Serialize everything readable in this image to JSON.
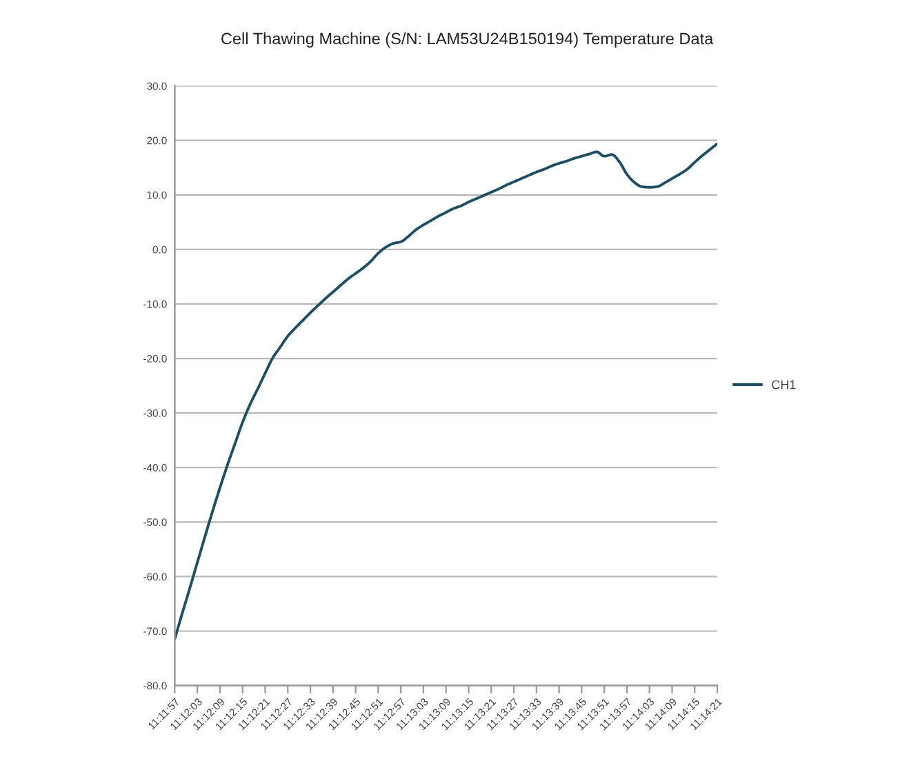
{
  "chart_data": {
    "type": "line",
    "title": "Cell Thawing Machine (S/N: LAM53U24B150194) Temperature Data",
    "categories": [
      "11:11:57",
      null,
      null,
      "11:12:03",
      null,
      null,
      "11:12:09",
      null,
      null,
      "11:12:15",
      null,
      null,
      "11:12:21",
      null,
      null,
      "11:12:27",
      null,
      null,
      "11:12:33",
      null,
      null,
      "11:12:39",
      null,
      null,
      "11:12:45",
      null,
      null,
      "11:12:51",
      null,
      null,
      "11:12:57",
      null,
      null,
      "11:13:03",
      null,
      null,
      "11:13:09",
      null,
      null,
      "11:13:15",
      null,
      null,
      "11:13:21",
      null,
      null,
      "11:13:27",
      null,
      null,
      "11:13:33",
      null,
      null,
      "11:13:39",
      null,
      null,
      "11:13:45",
      null,
      null,
      "11:13:51",
      null,
      null,
      "11:13:57",
      null,
      null,
      "11:14:03",
      null,
      null,
      "11:14:09",
      null,
      null,
      "11:14:15",
      null,
      null,
      "11:14:21"
    ],
    "series": [
      {
        "name": "CH1",
        "color": "#1d4e64",
        "values": [
          -71.4,
          -66.7,
          -62.1,
          -57.4,
          -52.7,
          -48.1,
          -43.7,
          -39.5,
          -35.6,
          -31.7,
          -28.4,
          -25.6,
          -22.7,
          -19.9,
          -17.9,
          -15.9,
          -14.4,
          -13.0,
          -11.6,
          -10.3,
          -9.0,
          -7.8,
          -6.6,
          -5.4,
          -4.4,
          -3.4,
          -2.2,
          -0.7,
          0.4,
          1.1,
          1.4,
          2.4,
          3.6,
          4.5,
          5.3,
          6.1,
          6.8,
          7.5,
          8.0,
          8.7,
          9.3,
          9.9,
          10.5,
          11.1,
          11.8,
          12.4,
          13.0,
          13.6,
          14.2,
          14.7,
          15.3,
          15.8,
          16.2,
          16.7,
          17.1,
          17.5,
          17.9,
          17.1,
          17.4,
          16.1,
          13.8,
          12.3,
          11.5,
          11.4,
          11.5,
          12.2,
          13.0,
          13.8,
          14.7,
          16.0,
          17.2,
          18.3,
          19.4
        ]
      }
    ],
    "ylim": [
      -80,
      30
    ],
    "yticks": [
      {
        "value": -80,
        "label": "-80.0"
      },
      {
        "value": -70,
        "label": "-70.0"
      },
      {
        "value": -60,
        "label": "-60.0"
      },
      {
        "value": -50,
        "label": "-50.0"
      },
      {
        "value": -40,
        "label": "-40.0"
      },
      {
        "value": -30,
        "label": "-30.0"
      },
      {
        "value": -20,
        "label": "-20.0"
      },
      {
        "value": -10,
        "label": "-10.0"
      },
      {
        "value": 0,
        "label": "0.0"
      },
      {
        "value": 10,
        "label": "10.0"
      },
      {
        "value": 20,
        "label": "20.0"
      },
      {
        "value": 30,
        "label": "30.0"
      }
    ],
    "grid": "y",
    "legend": "right"
  }
}
